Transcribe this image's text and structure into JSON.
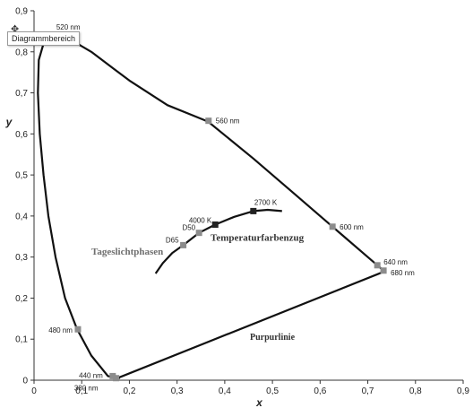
{
  "chart_data": {
    "type": "line",
    "xlabel": "x",
    "ylabel": "y",
    "xlim": [
      0,
      0.9
    ],
    "ylim": [
      0,
      0.9
    ],
    "x_ticks": [
      "0",
      "0,1",
      "0,2",
      "0,3",
      "0,4",
      "0,5",
      "0,6",
      "0,7",
      "0,8",
      "0,9"
    ],
    "y_ticks": [
      "0",
      "0,1",
      "0,2",
      "0,3",
      "0,4",
      "0,5",
      "0,6",
      "0,7",
      "0,8",
      "0,9"
    ],
    "grid": false,
    "legend": "none",
    "series": [
      {
        "x": [
          0.18,
          0.155,
          0.12,
          0.09,
          0.065,
          0.045,
          0.03,
          0.02,
          0.012,
          0.008,
          0.01,
          0.02,
          0.04,
          0.07,
          0.12,
          0.2,
          0.28,
          0.365,
          0.46,
          0.545,
          0.625,
          0.69,
          0.72,
          0.735,
          0.175,
          0.18
        ],
        "y": [
          0.005,
          0.01,
          0.06,
          0.125,
          0.2,
          0.3,
          0.4,
          0.5,
          0.6,
          0.7,
          0.78,
          0.82,
          0.835,
          0.834,
          0.8,
          0.73,
          0.67,
          0.63,
          0.54,
          0.455,
          0.375,
          0.31,
          0.28,
          0.265,
          0.005,
          0.005
        ]
      },
      {
        "x": [
          0.255,
          0.27,
          0.29,
          0.313,
          0.346,
          0.38,
          0.42,
          0.46,
          0.49,
          0.52
        ],
        "y": [
          0.26,
          0.285,
          0.31,
          0.329,
          0.359,
          0.379,
          0.398,
          0.412,
          0.415,
          0.412
        ]
      }
    ],
    "points": [
      {
        "label": "520 nm",
        "x": 0.068,
        "y": 0.834
      },
      {
        "label": "560 nm",
        "x": 0.366,
        "y": 0.632
      },
      {
        "label": "600 nm",
        "x": 0.626,
        "y": 0.374
      },
      {
        "label": "640 nm",
        "x": 0.72,
        "y": 0.28
      },
      {
        "label": "680 nm",
        "x": 0.733,
        "y": 0.267
      },
      {
        "label": "480 nm",
        "x": 0.092,
        "y": 0.124
      },
      {
        "label": "440 nm",
        "x": 0.165,
        "y": 0.01
      },
      {
        "label": "380 nm",
        "x": 0.172,
        "y": 0.005
      },
      {
        "label": "2700 K",
        "x": 0.46,
        "y": 0.412
      },
      {
        "label": "4000 K",
        "x": 0.38,
        "y": 0.379
      },
      {
        "label": "D50",
        "x": 0.346,
        "y": 0.359
      },
      {
        "label": "D65",
        "x": 0.313,
        "y": 0.329
      }
    ],
    "annotations": [
      "Tageslichtphasen",
      "Temperaturfarbenzug",
      "Purpurlinie"
    ],
    "tooltip": "Diagrammbereich"
  },
  "colors": {
    "curve": "#111111",
    "marker": "#8c8c8c",
    "marker_dark": "#222222"
  },
  "icons": {
    "cursor": "move-cursor-icon"
  }
}
